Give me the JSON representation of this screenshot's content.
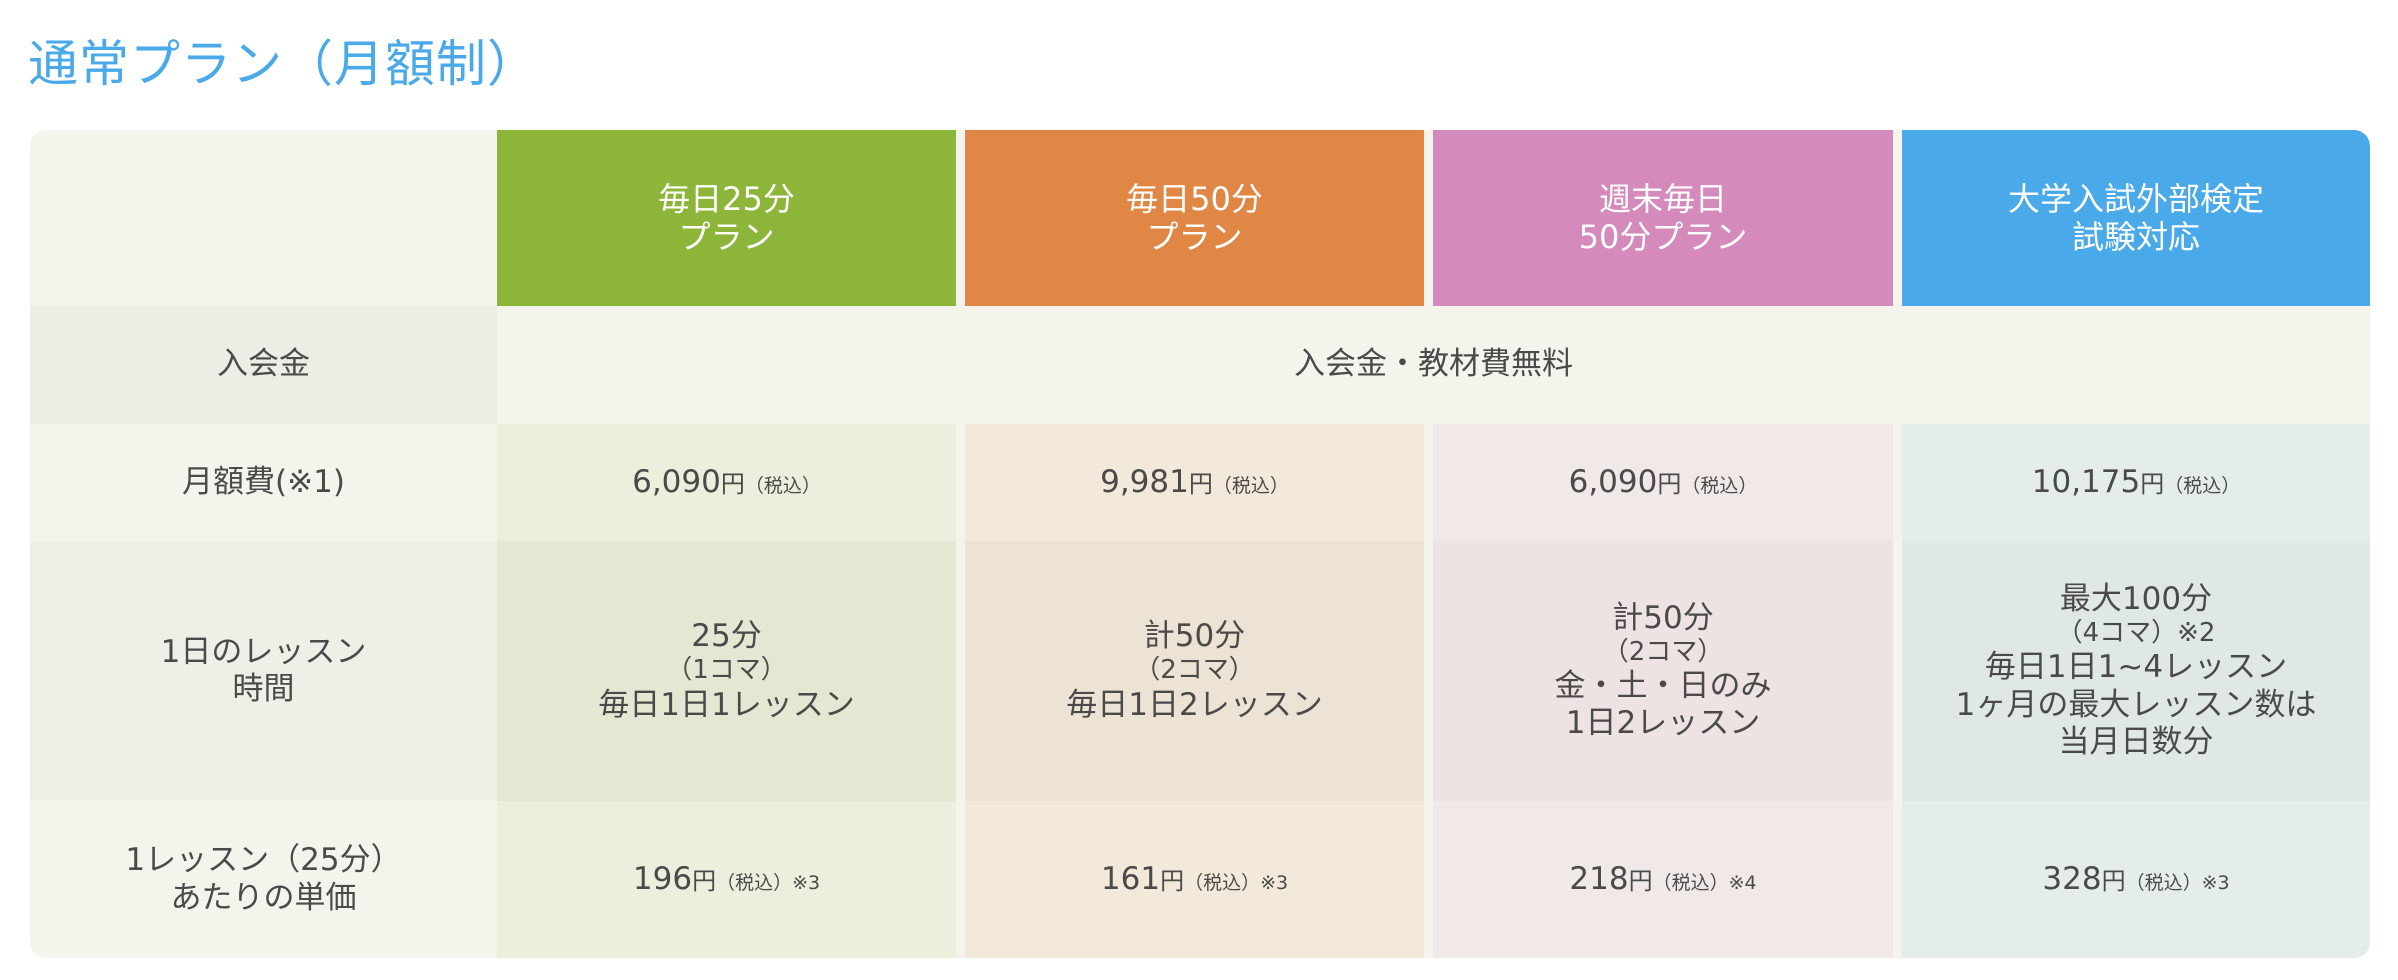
{
  "title": "通常プラン（月額制）",
  "colors": {
    "title": "#4aa9e8",
    "green": "#8db53a",
    "orange": "#e08746",
    "pink": "#d48abb",
    "blue": "#4aa9e8"
  },
  "plans": [
    {
      "name_line1": "毎日25分",
      "name_line2": "プラン",
      "color": "#8db53a",
      "bg": "#ebefdc",
      "bg_dark": "#e3e8d3",
      "monthly_price": "6,090",
      "monthly_unit": "円",
      "monthly_tax": "（税込）",
      "lesson_lines": [
        "25分",
        "（1コマ）",
        "毎日1日1レッスン"
      ],
      "unit_price": "196",
      "unit_unit": "円",
      "unit_tax": "（税込）",
      "unit_note": "※3"
    },
    {
      "name_line1": "毎日50分",
      "name_line2": "プラン",
      "color": "#e08746",
      "bg": "#f2e9da",
      "bg_dark": "#ede3d5",
      "monthly_price": "9,981",
      "monthly_unit": "円",
      "monthly_tax": "（税込）",
      "lesson_lines": [
        "計50分",
        "（2コマ）",
        "毎日1日2レッスン"
      ],
      "unit_price": "161",
      "unit_unit": "円",
      "unit_tax": "（税込）",
      "unit_note": "※3"
    },
    {
      "name_line1": "週末毎日",
      "name_line2": "50分プラン",
      "color": "#d48abb",
      "bg": "#f1e9e8",
      "bg_dark": "#ece3e2",
      "monthly_price": "6,090",
      "monthly_unit": "円",
      "monthly_tax": "（税込）",
      "lesson_lines": [
        "計50分",
        "（2コマ）",
        "金・土・日のみ",
        "1日2レッスン"
      ],
      "unit_price": "218",
      "unit_unit": "円",
      "unit_tax": "（税込）",
      "unit_note": "※4"
    },
    {
      "name_line1": "大学入試外部検定",
      "name_line2": "試験対応",
      "color": "#4aa9e8",
      "bg": "#e5ede9",
      "bg_dark": "#e0e8e5",
      "monthly_price": "10,175",
      "monthly_unit": "円",
      "monthly_tax": "（税込）",
      "lesson_lines": [
        "最大100分",
        "（4コマ）※2",
        "毎日1日1~4レッスン",
        "1ヶ月の最大レッスン数は",
        "当月日数分"
      ],
      "unit_price": "328",
      "unit_unit": "円",
      "unit_tax": "（税込）",
      "unit_note": "※3"
    }
  ],
  "rows": {
    "enrollment_label": "入会金",
    "enrollment_value": "入会金・教材費無料",
    "monthly_label": "月額費(※1)",
    "lesson_label_1": "1日のレッスン",
    "lesson_label_2": "時間",
    "unit_label_1": "1レッスン（25分）",
    "unit_label_2": "あたりの単価"
  }
}
